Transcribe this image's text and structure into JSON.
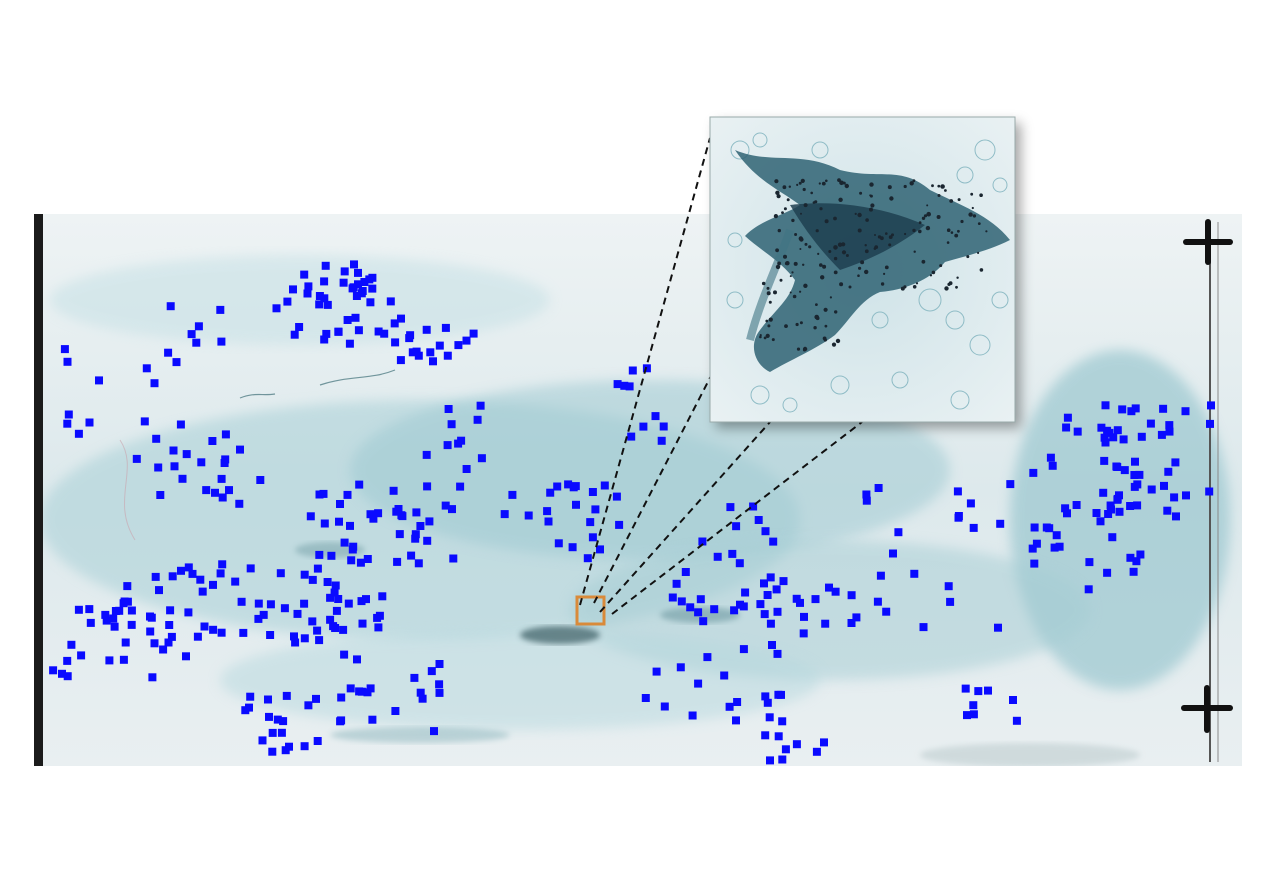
{
  "figure": {
    "description_free": true,
    "colors": {
      "page_background": "#ffffff",
      "slide_base": "#dfe9ec",
      "stain_teal": "#8ec3cd",
      "stain_dark": "#2c5f6c",
      "marker_blue": "#0a0aff",
      "highlight_box": "#d98a3a",
      "cell_cluster_dark": "#1e3e4e"
    },
    "icons": [
      "crosshair-mark-top",
      "crosshair-mark-bottom"
    ],
    "marker_count_visible": 400
  }
}
